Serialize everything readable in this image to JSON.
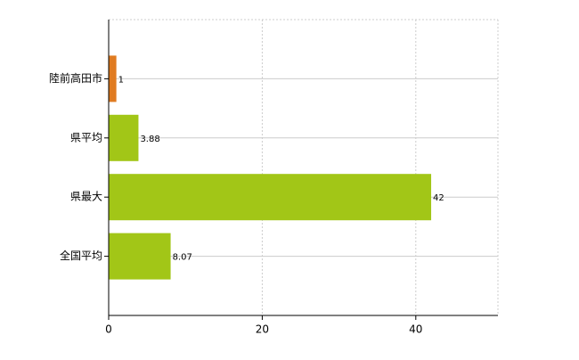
{
  "chart_data": {
    "type": "hbar",
    "categories": [
      "陸前高田市",
      "県平均",
      "県最大",
      "全国平均"
    ],
    "values": [
      1,
      3.88,
      42,
      8.07
    ],
    "colors": [
      "#e07b21",
      "#a2c617",
      "#a2c617",
      "#a2c617"
    ],
    "xlim": [
      0,
      50
    ],
    "xticks": [
      0,
      20,
      40
    ],
    "grid": true
  }
}
